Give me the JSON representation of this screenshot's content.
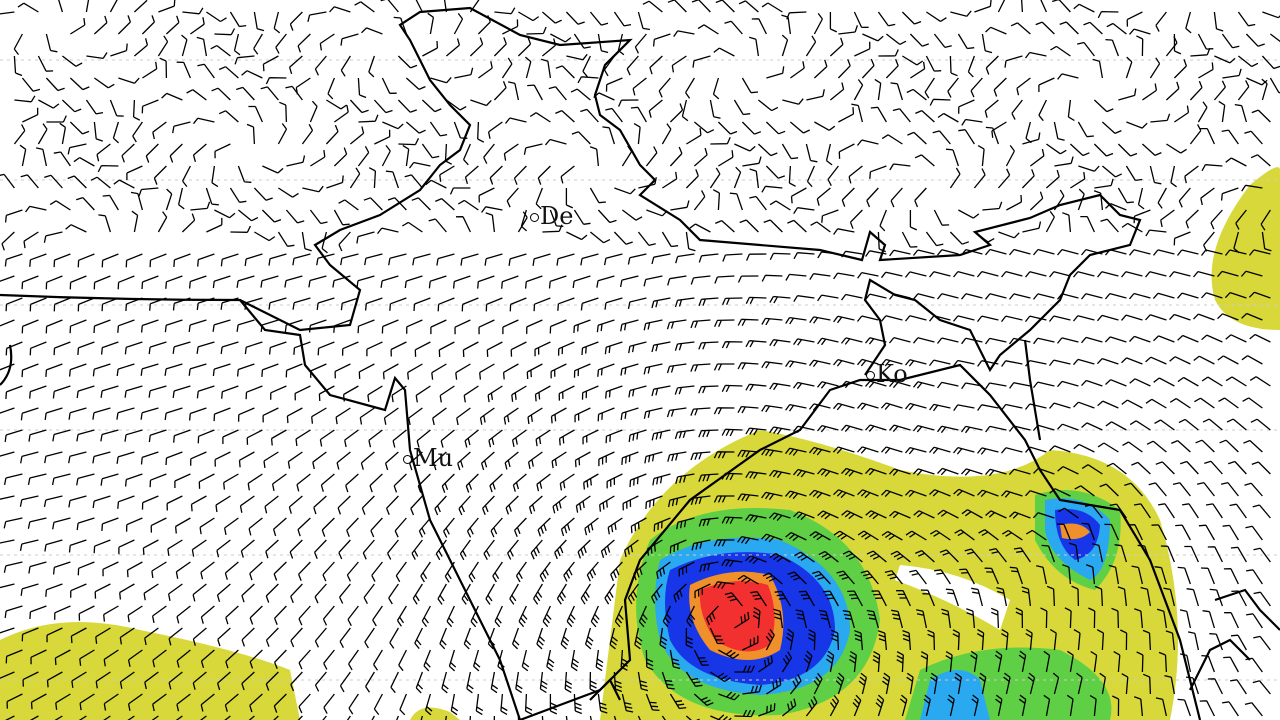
{
  "map": {
    "type": "wind-barb-map",
    "cities": [
      {
        "id": "delhi",
        "label": "De"
      },
      {
        "id": "mumbai",
        "label": "Mu"
      },
      {
        "id": "kolkata",
        "label": "Ko"
      }
    ],
    "shading_colors": {
      "level1": "#d8d83a",
      "level2": "#5fd045",
      "level3": "#2aa8f0",
      "level4": "#1636e8",
      "level5": "#f0902a",
      "level6": "#f23030"
    },
    "barb_color": "#000000",
    "border_color": "#000000"
  }
}
